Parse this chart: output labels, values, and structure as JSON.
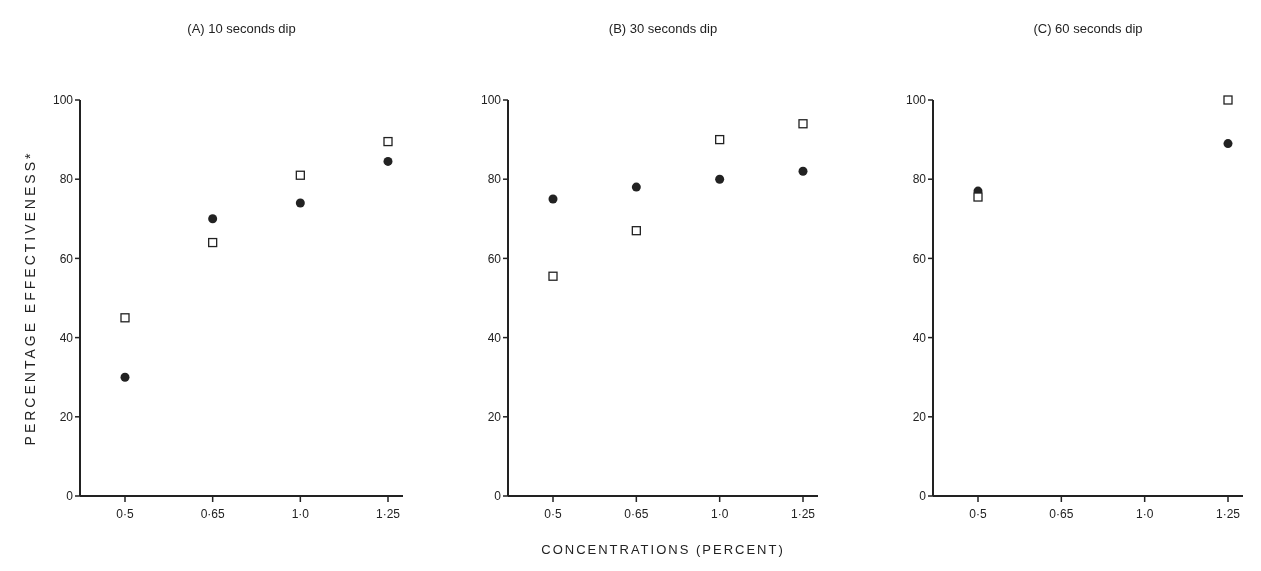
{
  "chart_data": [
    {
      "type": "scatter",
      "title": "(A) 10 seconds dip",
      "ylabel": "PERCENTAGE EFFECTIVENESS*",
      "categories": [
        "0·5",
        "0·65",
        "1·0",
        "1·25"
      ],
      "ylim": [
        0,
        100
      ],
      "yticks": [
        0,
        20,
        40,
        60,
        80,
        100
      ],
      "grid": false,
      "series": [
        {
          "color": "#222222",
          "marker": "square",
          "values": [
            45,
            64,
            81,
            89.5
          ]
        },
        {
          "color": "#222222",
          "marker": "circle",
          "values": [
            30,
            70,
            74,
            84.5
          ]
        }
      ]
    },
    {
      "type": "scatter",
      "title": "(B) 30 seconds dip",
      "xlabel": "CONCENTRATIONS (PERCENT)",
      "categories": [
        "0·5",
        "0·65",
        "1·0",
        "1·25"
      ],
      "ylim": [
        0,
        100
      ],
      "yticks": [
        0,
        20,
        40,
        60,
        80,
        100
      ],
      "grid": false,
      "series": [
        {
          "color": "#222222",
          "marker": "square",
          "values": [
            55.5,
            67,
            90,
            94
          ]
        },
        {
          "color": "#222222",
          "marker": "circle",
          "values": [
            75,
            78,
            80,
            82
          ]
        }
      ]
    },
    {
      "type": "scatter",
      "title": "(C) 60 seconds dip",
      "categories": [
        "0·5",
        "0·65",
        "1·0",
        "1·25"
      ],
      "ylim": [
        0,
        100
      ],
      "yticks": [
        0,
        20,
        40,
        60,
        80,
        100
      ],
      "grid": false,
      "series": [
        {
          "color": "#222222",
          "marker": "circle",
          "values": [
            77,
            null,
            null,
            89
          ]
        },
        {
          "color": "#222222",
          "marker": "square",
          "values": [
            75.5,
            null,
            null,
            100
          ]
        }
      ]
    }
  ]
}
